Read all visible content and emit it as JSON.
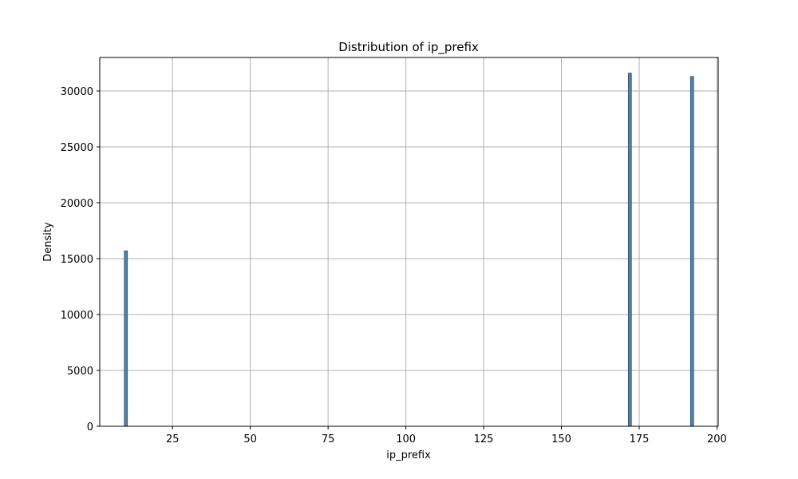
{
  "chart_data": {
    "type": "bar",
    "title": "Distribution of ip_prefix",
    "xlabel": "ip_prefix",
    "ylabel": "Density",
    "xlim": [
      1.6,
      200.4
    ],
    "ylim": [
      0,
      33000
    ],
    "x_ticks": [
      25,
      50,
      75,
      100,
      125,
      150,
      175,
      200
    ],
    "y_ticks": [
      0,
      5000,
      10000,
      15000,
      20000,
      25000,
      30000
    ],
    "grid": true,
    "bar_width": 1,
    "bar_color": "#4c82aa",
    "bars": [
      {
        "x": 10,
        "value": 15700
      },
      {
        "x": 172,
        "value": 31600
      },
      {
        "x": 192,
        "value": 31300
      }
    ]
  }
}
